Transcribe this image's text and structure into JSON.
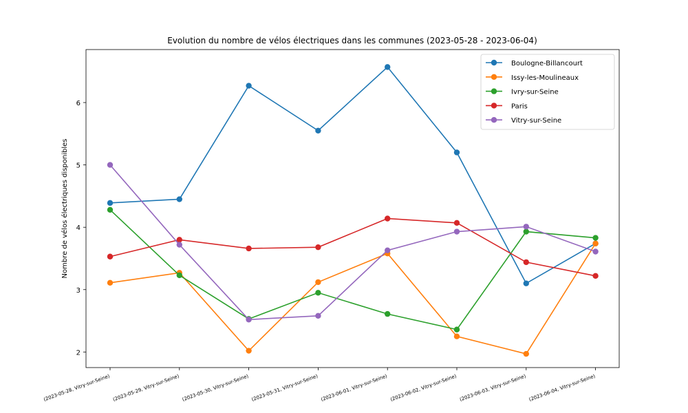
{
  "chart_data": {
    "type": "line",
    "title": "Evolution du nombre de vélos électriques dans les communes (2023-05-28 - 2023-06-04)",
    "xlabel": "",
    "ylabel": "Nombre de vélos électriques disponibles",
    "categories": [
      "(2023-05-28, Vitry-sur-Seine)",
      "(2023-05-29, Vitry-sur-Seine)",
      "(2023-05-30, Vitry-sur-Seine)",
      "(2023-05-31, Vitry-sur-Seine)",
      "(2023-06-01, Vitry-sur-Seine)",
      "(2023-06-02, Vitry-sur-Seine)",
      "(2023-06-03, Vitry-sur-Seine)",
      "(2023-06-04, Vitry-sur-Seine)"
    ],
    "ylim": [
      1.75,
      6.85
    ],
    "yticks": [
      2,
      3,
      4,
      5,
      6
    ],
    "grid": false,
    "legend_position": "top-right",
    "series": [
      {
        "name": "Boulogne-Billancourt",
        "color": "#1f77b4",
        "values": [
          4.39,
          4.45,
          6.27,
          5.55,
          6.57,
          5.2,
          3.1,
          3.74
        ]
      },
      {
        "name": "Issy-les-Moulineaux",
        "color": "#ff7f0e",
        "values": [
          3.11,
          3.27,
          2.02,
          3.12,
          3.58,
          2.25,
          1.97,
          3.74
        ]
      },
      {
        "name": "Ivry-sur-Seine",
        "color": "#2ca02c",
        "values": [
          4.28,
          3.23,
          2.53,
          2.95,
          2.61,
          2.36,
          3.93,
          3.83
        ]
      },
      {
        "name": "Paris",
        "color": "#d62728",
        "values": [
          3.53,
          3.8,
          3.66,
          3.68,
          4.14,
          4.07,
          3.44,
          3.22
        ]
      },
      {
        "name": "Vitry-sur-Seine",
        "color": "#9467bd",
        "values": [
          5.0,
          3.72,
          2.52,
          2.58,
          3.63,
          3.93,
          4.01,
          3.61
        ]
      }
    ]
  }
}
